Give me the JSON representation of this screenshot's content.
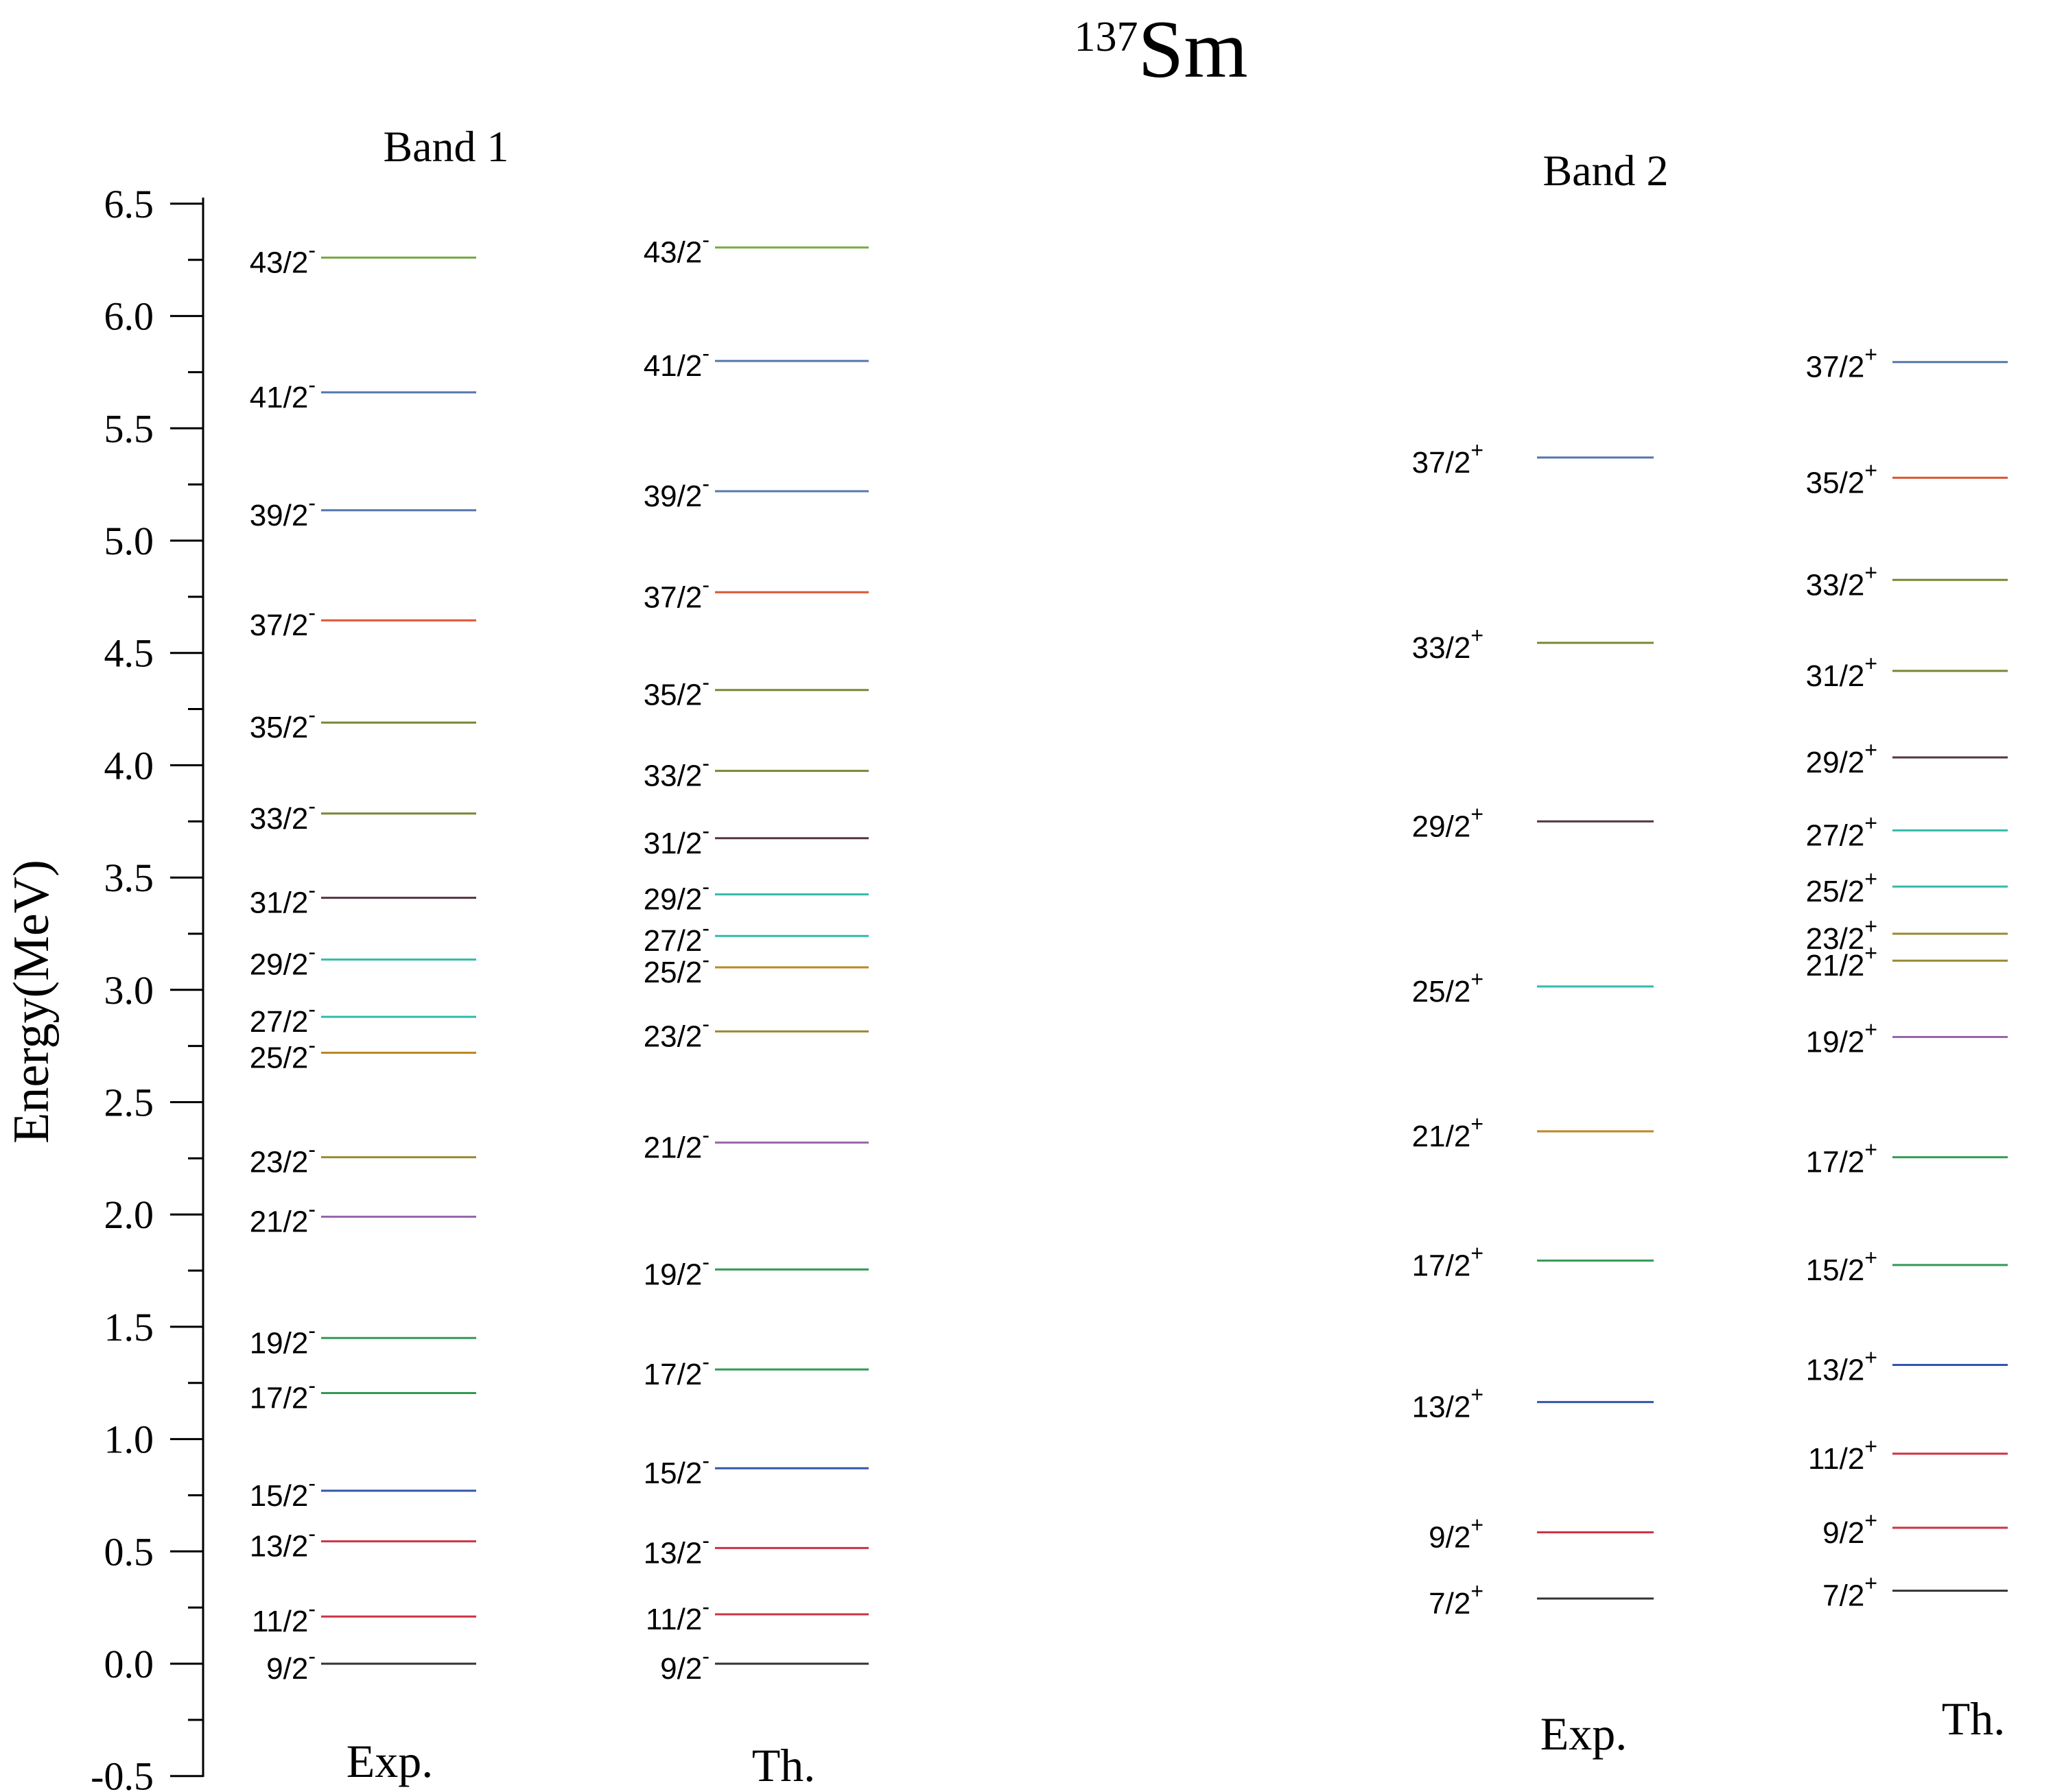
{
  "chart_data": {
    "type": "level-scheme",
    "title": "Sm",
    "title_superscript": "137",
    "ylabel": "Energy(MeV)",
    "ylim": [
      -0.5,
      6.5
    ],
    "y_ticks": [
      "-0.5",
      "0.0",
      "0.5",
      "1.0",
      "1.5",
      "2.0",
      "2.5",
      "3.0",
      "3.5",
      "4.0",
      "4.5",
      "5.0",
      "5.5",
      "6.0",
      "6.5"
    ],
    "y_tick_values": [
      -0.5,
      0.0,
      0.5,
      1.0,
      1.5,
      2.0,
      2.5,
      3.0,
      3.5,
      4.0,
      4.5,
      5.0,
      5.5,
      6.0,
      6.5
    ],
    "band_labels": [
      "Band 1",
      "Band 2"
    ],
    "columns": [
      {
        "label": "Exp.",
        "levels": [
          {
            "spin": "9/2",
            "parity": "-",
            "energy": 0.0,
            "color": "#333333"
          },
          {
            "spin": "11/2",
            "parity": "-",
            "energy": 0.21,
            "color": "#cc3344"
          },
          {
            "spin": "13/2",
            "parity": "-",
            "energy": 0.545,
            "color": "#cc3344"
          },
          {
            "spin": "15/2",
            "parity": "-",
            "energy": 0.77,
            "color": "#3355aa"
          },
          {
            "spin": "17/2",
            "parity": "-",
            "energy": 1.205,
            "color": "#339955"
          },
          {
            "spin": "19/2",
            "parity": "-",
            "energy": 1.45,
            "color": "#339955"
          },
          {
            "spin": "21/2",
            "parity": "-",
            "energy": 1.99,
            "color": "#9966aa"
          },
          {
            "spin": "23/2",
            "parity": "-",
            "energy": 2.255,
            "color": "#998833"
          },
          {
            "spin": "25/2",
            "parity": "-",
            "energy": 2.72,
            "color": "#bb8822"
          },
          {
            "spin": "27/2",
            "parity": "-",
            "energy": 2.88,
            "color": "#33bbaa"
          },
          {
            "spin": "29/2",
            "parity": "-",
            "energy": 3.135,
            "color": "#33bbaa"
          },
          {
            "spin": "31/2",
            "parity": "-",
            "energy": 3.41,
            "color": "#553344"
          },
          {
            "spin": "33/2",
            "parity": "-",
            "energy": 3.785,
            "color": "#778833"
          },
          {
            "spin": "35/2",
            "parity": "-",
            "energy": 4.19,
            "color": "#778833"
          },
          {
            "spin": "37/2",
            "parity": "-",
            "energy": 4.645,
            "color": "#dd5533"
          },
          {
            "spin": "39/2",
            "parity": "-",
            "energy": 5.135,
            "color": "#5577aa"
          },
          {
            "spin": "41/2",
            "parity": "-",
            "energy": 5.66,
            "color": "#5577aa"
          },
          {
            "spin": "43/2",
            "parity": "-",
            "energy": 6.26,
            "color": "#77aa44"
          }
        ]
      },
      {
        "label": "Th.",
        "levels": [
          {
            "spin": "9/2",
            "parity": "-",
            "energy": 0.0,
            "color": "#333333"
          },
          {
            "spin": "11/2",
            "parity": "-",
            "energy": 0.22,
            "color": "#cc3344"
          },
          {
            "spin": "13/2",
            "parity": "-",
            "energy": 0.515,
            "color": "#cc3344"
          },
          {
            "spin": "15/2",
            "parity": "-",
            "energy": 0.87,
            "color": "#3355aa"
          },
          {
            "spin": "17/2",
            "parity": "-",
            "energy": 1.31,
            "color": "#339955"
          },
          {
            "spin": "19/2",
            "parity": "-",
            "energy": 1.755,
            "color": "#339955"
          },
          {
            "spin": "21/2",
            "parity": "-",
            "energy": 2.32,
            "color": "#9966aa"
          },
          {
            "spin": "23/2",
            "parity": "-",
            "energy": 2.815,
            "color": "#998833"
          },
          {
            "spin": "25/2",
            "parity": "-",
            "energy": 3.1,
            "color": "#bb8822"
          },
          {
            "spin": "27/2",
            "parity": "-",
            "energy": 3.24,
            "color": "#33bbaa"
          },
          {
            "spin": "29/2",
            "parity": "-",
            "energy": 3.425,
            "color": "#33bbaa"
          },
          {
            "spin": "31/2",
            "parity": "-",
            "energy": 3.675,
            "color": "#553344"
          },
          {
            "spin": "33/2",
            "parity": "-",
            "energy": 3.975,
            "color": "#778833"
          },
          {
            "spin": "35/2",
            "parity": "-",
            "energy": 4.335,
            "color": "#778833"
          },
          {
            "spin": "37/2",
            "parity": "-",
            "energy": 4.77,
            "color": "#dd5533"
          },
          {
            "spin": "39/2",
            "parity": "-",
            "energy": 5.22,
            "color": "#5577aa"
          },
          {
            "spin": "41/2",
            "parity": "-",
            "energy": 5.8,
            "color": "#5577aa"
          },
          {
            "spin": "43/2",
            "parity": "-",
            "energy": 6.305,
            "color": "#77aa44"
          }
        ]
      },
      {
        "label": "Exp.",
        "levels": [
          {
            "spin": "7/2",
            "parity": "+",
            "energy": 0.29,
            "color": "#333333"
          },
          {
            "spin": "9/2",
            "parity": "+",
            "energy": 0.585,
            "color": "#cc3344"
          },
          {
            "spin": "13/2",
            "parity": "+",
            "energy": 1.165,
            "color": "#3355aa"
          },
          {
            "spin": "17/2",
            "parity": "+",
            "energy": 1.795,
            "color": "#339955"
          },
          {
            "spin": "21/2",
            "parity": "+",
            "energy": 2.37,
            "color": "#bb8822"
          },
          {
            "spin": "25/2",
            "parity": "+",
            "energy": 3.015,
            "color": "#33bbaa"
          },
          {
            "spin": "29/2",
            "parity": "+",
            "energy": 3.75,
            "color": "#553344"
          },
          {
            "spin": "33/2",
            "parity": "+",
            "energy": 4.545,
            "color": "#778833"
          },
          {
            "spin": "37/2",
            "parity": "+",
            "energy": 5.37,
            "color": "#5577aa"
          }
        ]
      },
      {
        "label": "Th.",
        "levels": [
          {
            "spin": "7/2",
            "parity": "+",
            "energy": 0.325,
            "color": "#333333"
          },
          {
            "spin": "9/2",
            "parity": "+",
            "energy": 0.605,
            "color": "#cc3344"
          },
          {
            "spin": "11/2",
            "parity": "+",
            "energy": 0.935,
            "color": "#cc3344"
          },
          {
            "spin": "13/2",
            "parity": "+",
            "energy": 1.33,
            "color": "#3355aa"
          },
          {
            "spin": "15/2",
            "parity": "+",
            "energy": 1.775,
            "color": "#339955"
          },
          {
            "spin": "17/2",
            "parity": "+",
            "energy": 2.255,
            "color": "#339955"
          },
          {
            "spin": "19/2",
            "parity": "+",
            "energy": 2.79,
            "color": "#9966aa"
          },
          {
            "spin": "21/2",
            "parity": "+",
            "energy": 3.13,
            "color": "#998833"
          },
          {
            "spin": "23/2",
            "parity": "+",
            "energy": 3.25,
            "color": "#998833"
          },
          {
            "spin": "25/2",
            "parity": "+",
            "energy": 3.46,
            "color": "#33bbaa"
          },
          {
            "spin": "27/2",
            "parity": "+",
            "energy": 3.71,
            "color": "#33bbaa"
          },
          {
            "spin": "29/2",
            "parity": "+",
            "energy": 4.035,
            "color": "#553344"
          },
          {
            "spin": "31/2",
            "parity": "+",
            "energy": 4.42,
            "color": "#778833"
          },
          {
            "spin": "33/2",
            "parity": "+",
            "energy": 4.825,
            "color": "#778833"
          },
          {
            "spin": "35/2",
            "parity": "+",
            "energy": 5.28,
            "color": "#dd5533"
          },
          {
            "spin": "37/2",
            "parity": "+",
            "energy": 5.795,
            "color": "#5577aa"
          }
        ]
      }
    ]
  }
}
